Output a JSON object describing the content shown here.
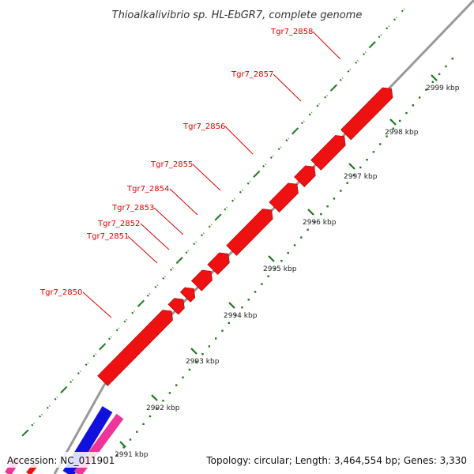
{
  "title": "Thioalkalivibrio sp. HL-EbGR7, complete genome",
  "footer": {
    "accession": "Accession: NC_011901",
    "summary": "Topology: circular; Length: 3,464,554 bp; Genes: 3,330"
  },
  "colors": {
    "forward_gene": "#ee1111",
    "backbone": "#999999",
    "tick": "#1a7a1a",
    "label": "#e00000",
    "blue_feature": "#1111dd",
    "pink_feature": "#ee3399"
  },
  "genes": [
    {
      "name": "Tgr7_2850"
    },
    {
      "name": "Tgr7_2851"
    },
    {
      "name": "Tgr7_2852"
    },
    {
      "name": "Tgr7_2853"
    },
    {
      "name": "Tgr7_2854"
    },
    {
      "name": "Tgr7_2855"
    },
    {
      "name": "Tgr7_2856"
    },
    {
      "name": "Tgr7_2857"
    },
    {
      "name": "Tgr7_2858"
    }
  ],
  "scale_ticks": [
    {
      "label": "2991 kbp"
    },
    {
      "label": "2992 kbp"
    },
    {
      "label": "2993 kbp"
    },
    {
      "label": "2994 kbp"
    },
    {
      "label": "2995 kbp"
    },
    {
      "label": "2996 kbp"
    },
    {
      "label": "2997 kbp"
    },
    {
      "label": "2998 kbp"
    },
    {
      "label": "2999 kbp"
    }
  ]
}
